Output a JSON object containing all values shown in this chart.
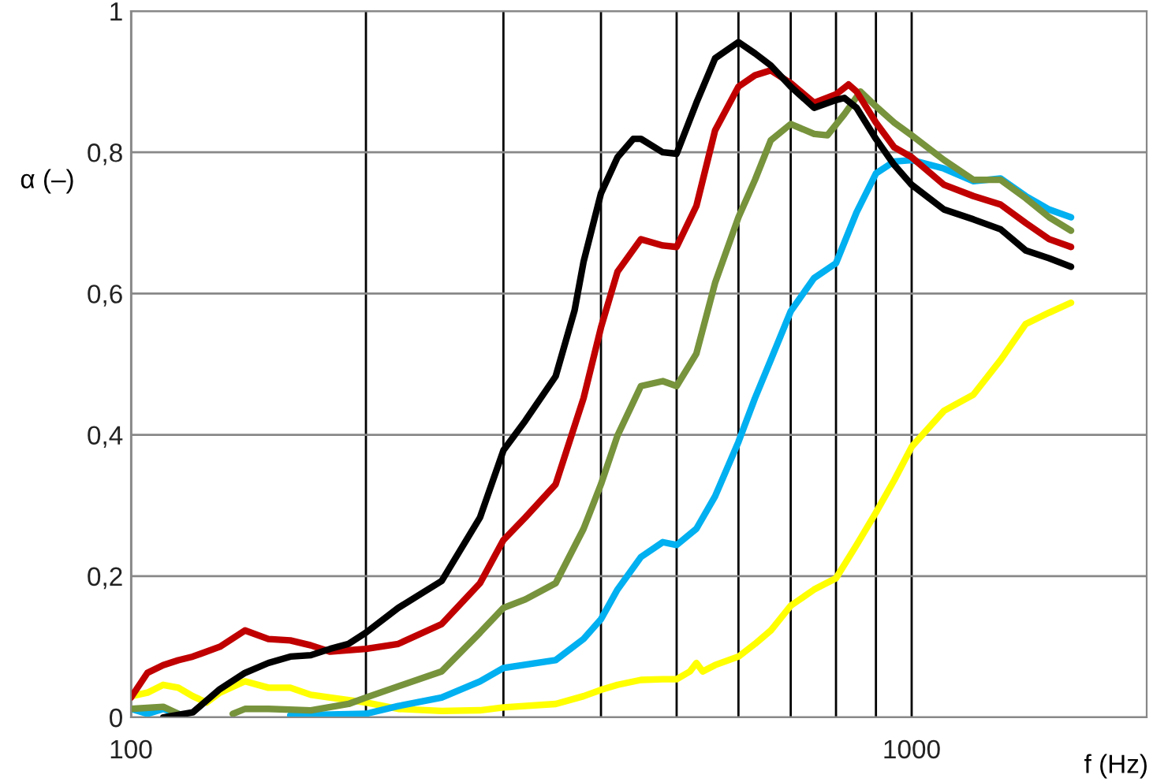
{
  "chart_data": {
    "type": "line",
    "xlabel": "f (Hz)",
    "ylabel": "α (–)",
    "log": "x",
    "grid": true,
    "marker": "none",
    "line_style": "solid",
    "xlim": [
      100,
      2000
    ],
    "xticks": [
      100,
      {
        "value": 200,
        "label": null
      },
      {
        "value": 300,
        "label": null
      },
      {
        "value": 400,
        "label": null
      },
      {
        "value": 500,
        "label": null
      },
      {
        "value": 600,
        "label": null
      },
      {
        "value": 700,
        "label": null
      },
      {
        "value": 800,
        "label": null
      },
      {
        "value": 900,
        "label": null
      },
      1000
    ],
    "ylim": [
      0,
      1
    ],
    "yticks": [
      0,
      {
        "value": 0.2,
        "label": "0,2"
      },
      {
        "value": 0.4,
        "label": "0,4"
      },
      {
        "value": 0.6,
        "label": "0,6"
      },
      {
        "value": 0.8,
        "label": "0,8"
      },
      1
    ],
    "series": [
      {
        "color": "#ffff00",
        "x": [
          100,
          105,
          110,
          115,
          120,
          125,
          130,
          140,
          150,
          160,
          170,
          180,
          200,
          220,
          250,
          280,
          300,
          350,
          380,
          400,
          420,
          450,
          480,
          500,
          520,
          530,
          540,
          560,
          600,
          630,
          660,
          700,
          750,
          800,
          850,
          900,
          950,
          1000,
          1100,
          1200,
          1300,
          1400,
          1500,
          1600
        ],
        "values": [
          0.03,
          0.035,
          0.046,
          0.042,
          0.03,
          0.021,
          0.035,
          0.051,
          0.042,
          0.042,
          0.032,
          0.028,
          0.021,
          0.012,
          0.009,
          0.01,
          0.014,
          0.019,
          0.03,
          0.039,
          0.046,
          0.053,
          0.054,
          0.054,
          0.065,
          0.077,
          0.065,
          0.074,
          0.086,
          0.104,
          0.123,
          0.158,
          0.181,
          0.197,
          0.244,
          0.29,
          0.336,
          0.383,
          0.434,
          0.457,
          0.506,
          0.557,
          0.573,
          0.587
        ]
      },
      {
        "color": "#00b0f0",
        "x": [
          100,
          105,
          110,
          115,
          120,
          160,
          180,
          200,
          220,
          250,
          280,
          300,
          350,
          380,
          400,
          420,
          450,
          480,
          500,
          530,
          560,
          600,
          630,
          660,
          700,
          750,
          800,
          850,
          900,
          950,
          1000,
          1100,
          1200,
          1300,
          1400,
          1500,
          1600
        ],
        "values": [
          0.012,
          0.005,
          0.012,
          0.005,
          null,
          0.003,
          0.004,
          0.005,
          0.016,
          0.028,
          0.051,
          0.07,
          0.081,
          0.111,
          0.139,
          0.181,
          0.227,
          0.248,
          0.244,
          0.267,
          0.313,
          0.39,
          0.452,
          0.506,
          0.575,
          0.622,
          0.643,
          0.715,
          0.77,
          0.787,
          0.789,
          0.777,
          0.759,
          0.763,
          0.738,
          0.719,
          0.708
        ]
      },
      {
        "color": "#77933c",
        "x": [
          100,
          110,
          115,
          120,
          135,
          140,
          150,
          170,
          190,
          200,
          220,
          250,
          280,
          300,
          320,
          350,
          380,
          400,
          420,
          450,
          480,
          500,
          530,
          560,
          600,
          630,
          660,
          700,
          750,
          780,
          820,
          860,
          900,
          950,
          1000,
          1100,
          1200,
          1300,
          1400,
          1500,
          1600
        ],
        "values": [
          0.012,
          0.015,
          0.005,
          null,
          0.005,
          0.012,
          0.012,
          0.01,
          0.019,
          0.028,
          0.044,
          0.065,
          0.12,
          0.155,
          0.167,
          0.19,
          0.267,
          0.33,
          0.399,
          0.469,
          0.476,
          0.469,
          0.515,
          0.615,
          0.708,
          0.761,
          0.817,
          0.84,
          0.826,
          0.824,
          0.854,
          0.886,
          0.865,
          0.842,
          0.824,
          0.789,
          0.761,
          0.761,
          0.735,
          0.708,
          0.689
        ]
      },
      {
        "color": "#c00000",
        "x": [
          100,
          105,
          110,
          115,
          120,
          130,
          140,
          150,
          160,
          170,
          180,
          200,
          220,
          250,
          280,
          300,
          320,
          350,
          380,
          400,
          420,
          450,
          480,
          500,
          530,
          560,
          600,
          630,
          660,
          700,
          750,
          800,
          830,
          850,
          900,
          950,
          1000,
          1100,
          1200,
          1300,
          1400,
          1500,
          1600
        ],
        "values": [
          0.028,
          0.063,
          0.074,
          0.081,
          0.086,
          0.1,
          0.123,
          0.111,
          0.109,
          0.102,
          0.093,
          0.097,
          0.104,
          0.132,
          0.19,
          0.251,
          0.283,
          0.33,
          0.452,
          0.552,
          0.631,
          0.677,
          0.668,
          0.666,
          0.724,
          0.831,
          0.893,
          0.909,
          0.916,
          0.898,
          0.87,
          0.882,
          0.896,
          0.886,
          0.842,
          0.807,
          0.793,
          0.754,
          0.738,
          0.726,
          0.7,
          0.677,
          0.666
        ]
      },
      {
        "color": "#000000",
        "x": [
          110,
          120,
          130,
          140,
          150,
          160,
          170,
          180,
          190,
          200,
          220,
          250,
          280,
          300,
          320,
          350,
          370,
          380,
          400,
          420,
          440,
          450,
          480,
          500,
          530,
          560,
          600,
          630,
          660,
          700,
          750,
          800,
          820,
          850,
          900,
          950,
          1000,
          1100,
          1200,
          1300,
          1400,
          1500,
          1600
        ],
        "values": [
          0.0,
          0.007,
          0.04,
          0.063,
          0.077,
          0.086,
          0.088,
          0.097,
          0.104,
          0.12,
          0.155,
          0.193,
          0.283,
          0.378,
          0.42,
          0.483,
          0.576,
          0.645,
          0.742,
          0.793,
          0.819,
          0.819,
          0.8,
          0.798,
          0.87,
          0.933,
          0.956,
          0.94,
          0.923,
          0.893,
          0.863,
          0.874,
          0.877,
          0.863,
          0.819,
          0.782,
          0.754,
          0.719,
          0.705,
          0.691,
          0.661,
          0.65,
          0.638
        ]
      }
    ]
  }
}
